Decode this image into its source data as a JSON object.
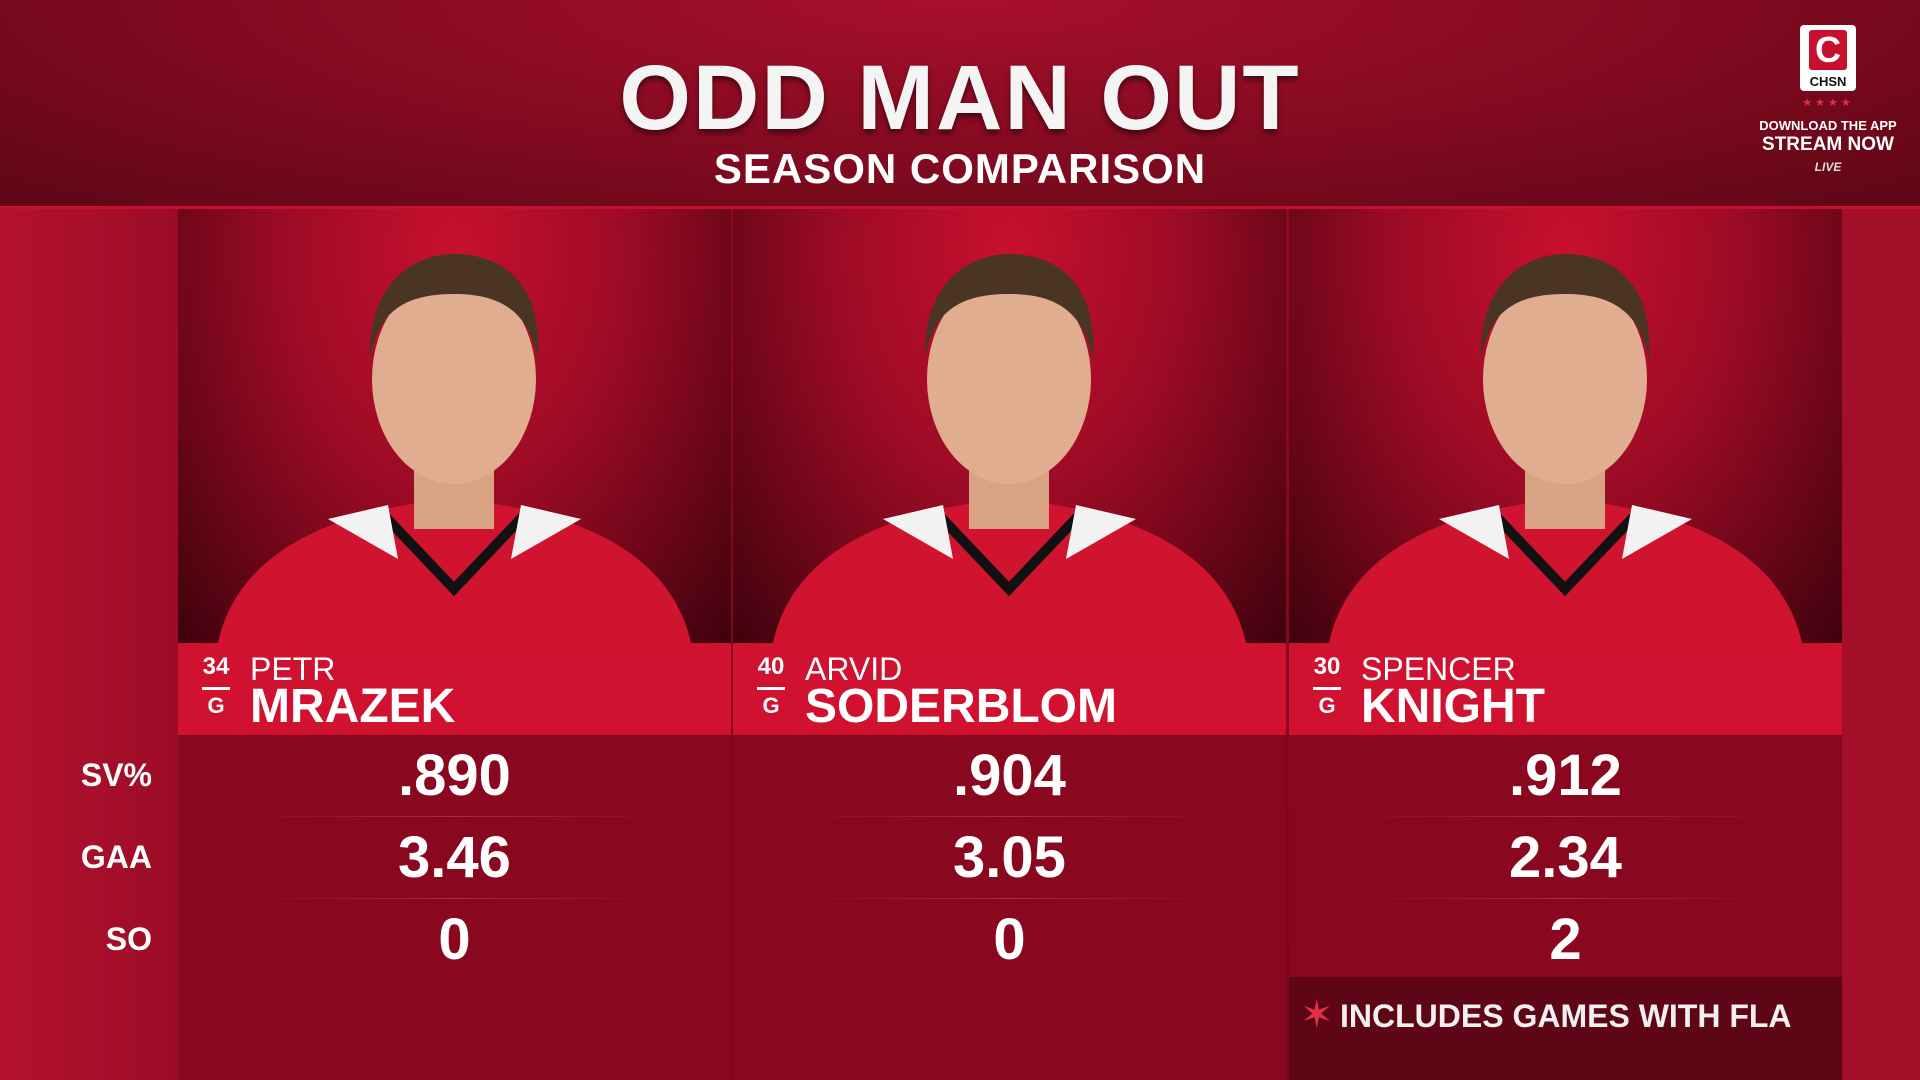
{
  "header": {
    "title": "ODD MAN OUT",
    "subtitle": "SEASON COMPARISON"
  },
  "branding": {
    "logo": "CHSN",
    "line1": "DOWNLOAD THE APP",
    "line2": "STREAM NOW",
    "line3": "LIVE"
  },
  "table": {
    "row_labels": [
      "SV%",
      "GAA",
      "SO"
    ],
    "players": [
      {
        "number": "34",
        "position": "G",
        "first_name": "PETR",
        "last_name": "MRAZEK",
        "stats": [
          ".890",
          "3.46",
          "0"
        ]
      },
      {
        "number": "40",
        "position": "G",
        "first_name": "ARVID",
        "last_name": "SODERBLOM",
        "stats": [
          ".904",
          "3.05",
          "0"
        ]
      },
      {
        "number": "30",
        "position": "G",
        "first_name": "SPENCER",
        "last_name": "KNIGHT",
        "stats": [
          ".912",
          "2.34",
          "2"
        ]
      }
    ]
  },
  "footnote": "INCLUDES GAMES WITH FLA"
}
